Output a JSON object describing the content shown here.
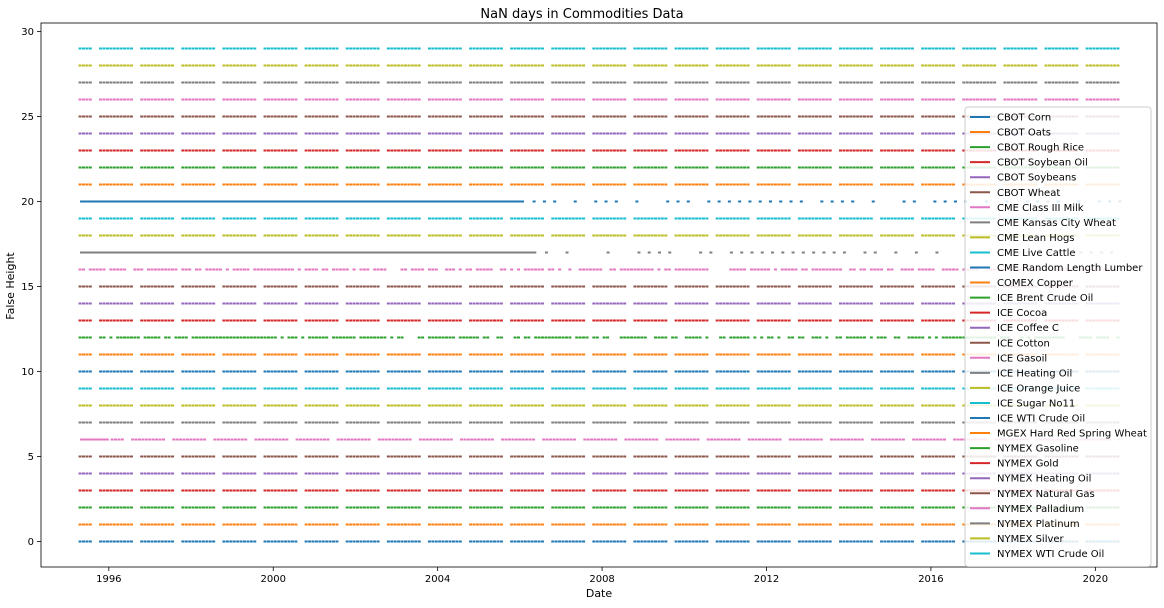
{
  "chart_data": {
    "type": "line",
    "title": "NaN days in Commodities Data",
    "xlabel": "Date",
    "ylabel": "False Height",
    "xlim": [
      1994.35,
      2021.5
    ],
    "ylim": [
      -1.5,
      30.5
    ],
    "xticks": [
      1996,
      2000,
      2004,
      2008,
      2012,
      2016,
      2020
    ],
    "xtick_labels": [
      "1996",
      "2000",
      "2004",
      "2008",
      "2012",
      "2016",
      "2020"
    ],
    "yticks": [
      0,
      5,
      10,
      15,
      20,
      25,
      30
    ],
    "ytick_labels": [
      "0",
      "5",
      "10",
      "15",
      "20",
      "25",
      "30"
    ],
    "grid": false,
    "legend_position": "right",
    "series": [
      {
        "name": "CBOT Corn",
        "height": 0,
        "color": "#1f77b4",
        "pattern": "regular",
        "start": 1995.3,
        "end": 2020.6
      },
      {
        "name": "CBOT Oats",
        "height": 1,
        "color": "#ff7f0e",
        "pattern": "regular",
        "start": 1995.3,
        "end": 2020.6
      },
      {
        "name": "CBOT Rough Rice",
        "height": 2,
        "color": "#2ca02c",
        "pattern": "regular",
        "start": 1995.3,
        "end": 2020.6
      },
      {
        "name": "CBOT Soybean Oil",
        "height": 3,
        "color": "#d62728",
        "pattern": "regular",
        "start": 1995.3,
        "end": 2020.6
      },
      {
        "name": "CBOT Soybeans",
        "height": 4,
        "color": "#9467bd",
        "pattern": "regular",
        "start": 1995.3,
        "end": 2020.6
      },
      {
        "name": "CBOT Wheat",
        "height": 5,
        "color": "#8c564b",
        "pattern": "regular",
        "start": 1995.3,
        "end": 2020.6
      },
      {
        "name": "CME Class III Milk",
        "height": 6,
        "color": "#e377c2",
        "pattern": "regular",
        "solid_start": 1995.3,
        "solid_end": 1996.0,
        "start": 1995.3,
        "end": 2020.6
      },
      {
        "name": "CME Kansas City Wheat",
        "height": 7,
        "color": "#7f7f7f",
        "pattern": "regular",
        "start": 1995.3,
        "end": 2020.6
      },
      {
        "name": "CME Lean Hogs",
        "height": 8,
        "color": "#bcbd22",
        "pattern": "regular",
        "start": 1995.3,
        "end": 2020.6
      },
      {
        "name": "CME Live Cattle",
        "height": 9,
        "color": "#17becf",
        "pattern": "regular",
        "start": 1995.3,
        "end": 2020.6
      },
      {
        "name": "CME Random Length Lumber",
        "height": 20,
        "color": "#1f77b4",
        "pattern": "sparse",
        "solid_start": 1995.3,
        "solid_end": 2006.1,
        "start": 1995.3,
        "end": 2020.6
      },
      {
        "name": "COMEX Copper",
        "height": 21,
        "color": "#ff7f0e",
        "pattern": "regular",
        "start": 1995.3,
        "end": 2020.6
      },
      {
        "name": "ICE Brent Crude Oil",
        "height": 12,
        "color": "#2ca02c",
        "pattern": "irregular",
        "start": 1995.3,
        "end": 2020.6
      },
      {
        "name": "ICE Cocoa",
        "height": 13,
        "color": "#d62728",
        "pattern": "regular",
        "start": 1995.3,
        "end": 2020.6
      },
      {
        "name": "ICE Coffee C",
        "height": 14,
        "color": "#9467bd",
        "pattern": "regular",
        "start": 1995.3,
        "end": 2020.6
      },
      {
        "name": "ICE Cotton",
        "height": 15,
        "color": "#8c564b",
        "pattern": "regular",
        "start": 1995.3,
        "end": 2020.6
      },
      {
        "name": "ICE Gasoil",
        "height": 16,
        "color": "#e377c2",
        "pattern": "irregular",
        "start": 1995.3,
        "end": 2020.6
      },
      {
        "name": "ICE Heating Oil",
        "height": 17,
        "color": "#7f7f7f",
        "pattern": "sparse",
        "solid_start": 1995.3,
        "solid_end": 2006.4,
        "start": 1995.3,
        "end": 2020.6
      },
      {
        "name": "ICE Orange Juice",
        "height": 18,
        "color": "#bcbd22",
        "pattern": "regular",
        "start": 1995.3,
        "end": 2020.6
      },
      {
        "name": "ICE Sugar No11",
        "height": 19,
        "color": "#17becf",
        "pattern": "regular",
        "start": 1995.3,
        "end": 2020.6
      },
      {
        "name": "ICE WTI Crude Oil",
        "height": 10,
        "color": "#1f77b4",
        "pattern": "regular",
        "start": 1995.3,
        "end": 2020.6
      },
      {
        "name": "MGEX Hard Red Spring Wheat",
        "height": 11,
        "color": "#ff7f0e",
        "pattern": "regular",
        "start": 1995.3,
        "end": 2020.6
      },
      {
        "name": "NYMEX Gasoline",
        "height": 22,
        "color": "#2ca02c",
        "pattern": "regular",
        "start": 1995.3,
        "end": 2020.6
      },
      {
        "name": "NYMEX Gold",
        "height": 23,
        "color": "#d62728",
        "pattern": "regular",
        "start": 1995.3,
        "end": 2020.6
      },
      {
        "name": "NYMEX Heating Oil",
        "height": 24,
        "color": "#9467bd",
        "pattern": "regular",
        "start": 1995.3,
        "end": 2020.6
      },
      {
        "name": "NYMEX Natural Gas",
        "height": 25,
        "color": "#8c564b",
        "pattern": "regular",
        "start": 1995.3,
        "end": 2020.6
      },
      {
        "name": "NYMEX Palladium",
        "height": 26,
        "color": "#e377c2",
        "pattern": "regular",
        "start": 1995.3,
        "end": 2020.6
      },
      {
        "name": "NYMEX Platinum",
        "height": 27,
        "color": "#7f7f7f",
        "pattern": "regular",
        "start": 1995.3,
        "end": 2020.6
      },
      {
        "name": "NYMEX Silver",
        "height": 28,
        "color": "#bcbd22",
        "pattern": "regular",
        "start": 1995.3,
        "end": 2020.6
      },
      {
        "name": "NYMEX WTI Crude Oil",
        "height": 29,
        "color": "#17becf",
        "pattern": "regular",
        "start": 1995.3,
        "end": 2020.6
      }
    ]
  }
}
